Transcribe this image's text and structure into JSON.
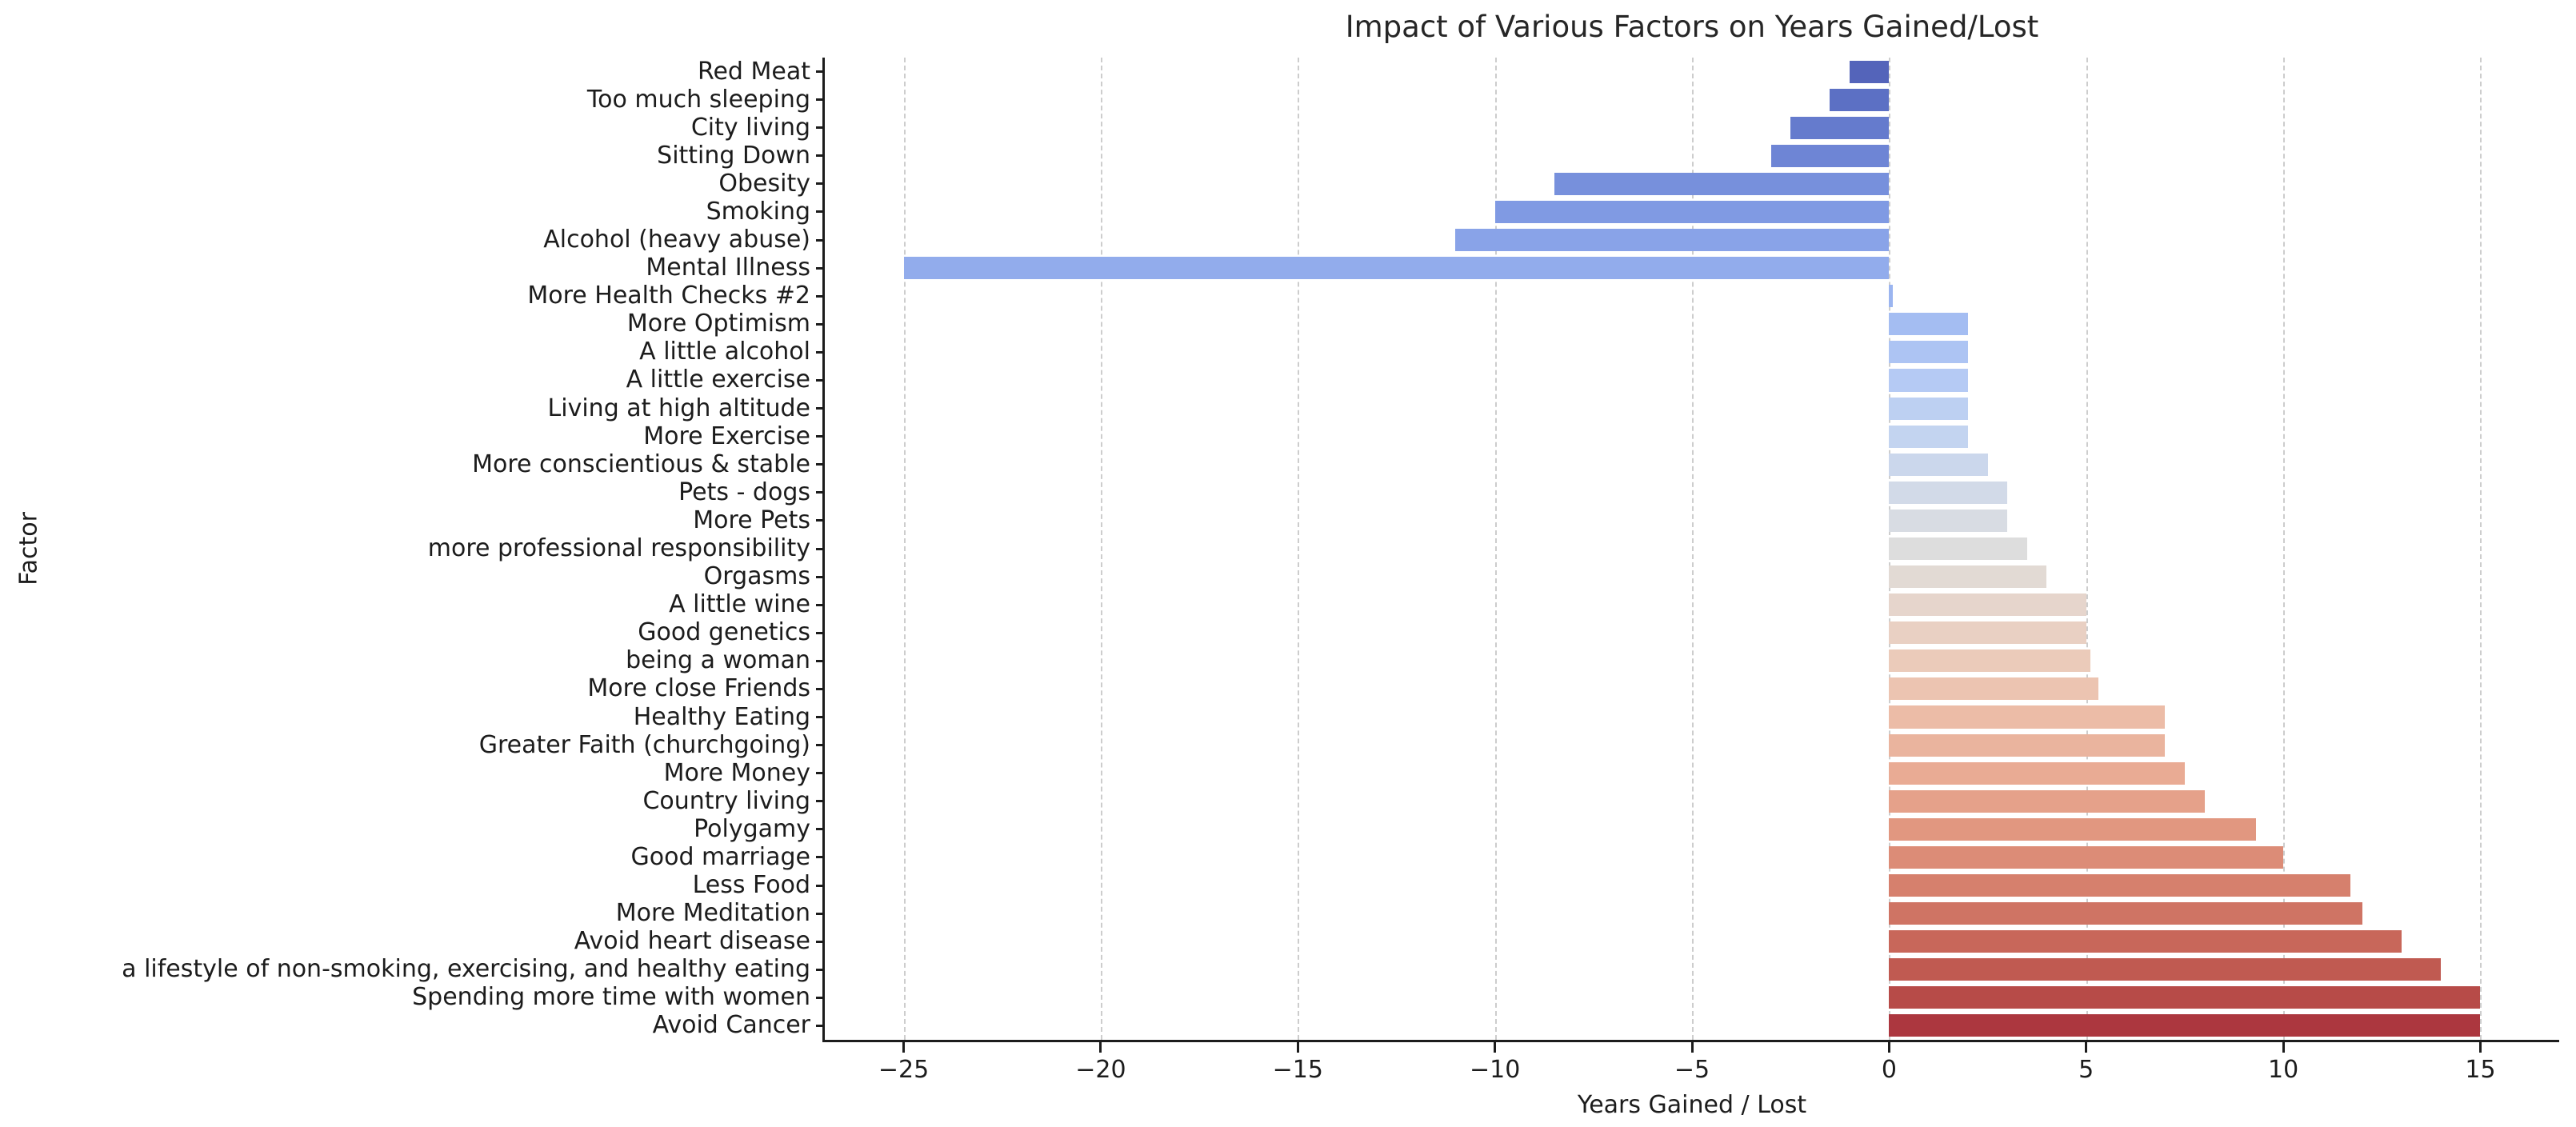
{
  "chart_data": {
    "type": "bar",
    "orientation": "horizontal",
    "title": "Impact of Various Factors on Years Gained/Lost",
    "xlabel": "Years Gained / Lost",
    "ylabel": "Factor",
    "categories": [
      "Red Meat",
      "Too much sleeping",
      "City living",
      "Sitting Down",
      "Obesity",
      "Smoking",
      "Alcohol (heavy abuse)",
      "Mental Illness",
      "More Health Checks #2",
      "More Optimism",
      "A little alcohol",
      "A little exercise",
      "Living at high altitude",
      "More Exercise",
      "More conscientious & stable",
      "Pets - dogs",
      "More Pets",
      "more professional responsibility",
      "Orgasms",
      "A little wine",
      "Good genetics",
      "being a woman",
      "More close Friends",
      "Healthy Eating",
      "Greater Faith (churchgoing)",
      "More Money",
      "Country living",
      "Polygamy",
      "Good marriage",
      "Less Food",
      "More Meditation",
      "Avoid heart disease",
      "a lifestyle of non-smoking, exercising, and healthy eating",
      "Spending more time with women",
      "Avoid Cancer"
    ],
    "values": [
      -1.0,
      -1.5,
      -2.5,
      -3.0,
      -8.5,
      -10.0,
      -11.0,
      -25.0,
      0.1,
      2.0,
      2.0,
      2.0,
      2.0,
      2.0,
      2.5,
      3.0,
      3.0,
      3.5,
      4.0,
      5.0,
      5.0,
      5.1,
      5.3,
      7.0,
      7.0,
      7.5,
      8.0,
      9.3,
      10.0,
      11.7,
      12.0,
      13.0,
      14.0,
      15.0,
      15.0
    ],
    "bar_colors": [
      "#5464BA",
      "#5C70C4",
      "#657BCD",
      "#6E85D5",
      "#7790DC",
      "#809AE3",
      "#89A3E8",
      "#92ACEC",
      "#9BB5F0",
      "#A4BDF2",
      "#ADC4F3",
      "#B5CAF4",
      "#BDD0F2",
      "#C3D4F0",
      "#CBD7EC",
      "#D2DAE8",
      "#D8DCE3",
      "#DDDDDD",
      "#E2DAD4",
      "#E6D5CC",
      "#E9D0C3",
      "#EBCBBA",
      "#ECC4B1",
      "#ECBCA7",
      "#EAB49E",
      "#E9AB94",
      "#E5A18A",
      "#E19780",
      "#DC8C77",
      "#D6806D",
      "#CF7464",
      "#C8675A",
      "#C05A51",
      "#B74B48",
      "#AC373F"
    ],
    "xlim": [
      -27,
      17
    ],
    "xticks": [
      -25,
      -20,
      -15,
      -10,
      -5,
      0,
      5,
      10,
      15
    ],
    "xtick_labels": [
      "−25",
      "−20",
      "−15",
      "−10",
      "−5",
      "0",
      "5",
      "10",
      "15"
    ],
    "bar_fraction": 0.8,
    "grid": {
      "axis": "x",
      "style": "dashed",
      "color": "#cdcdcd"
    },
    "colors": {
      "spine": "#1c1c1c",
      "text": "#1c1c1c",
      "title": "#262626",
      "background": "#ffffff"
    },
    "legend": null
  }
}
